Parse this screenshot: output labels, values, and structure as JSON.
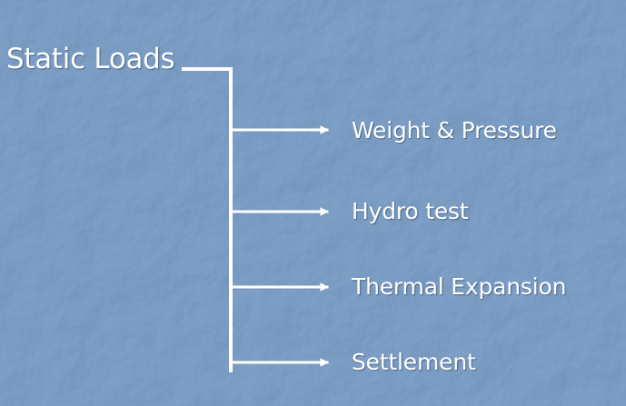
{
  "colors": {
    "background": "#5b7ca3",
    "line": "#ffffff",
    "text": "#ffffff"
  },
  "root": {
    "label": "Static Loads"
  },
  "branches": [
    {
      "label": "Weight & Pressure"
    },
    {
      "label": "Hydro test"
    },
    {
      "label": "Thermal Expansion"
    },
    {
      "label": "Settlement"
    }
  ]
}
